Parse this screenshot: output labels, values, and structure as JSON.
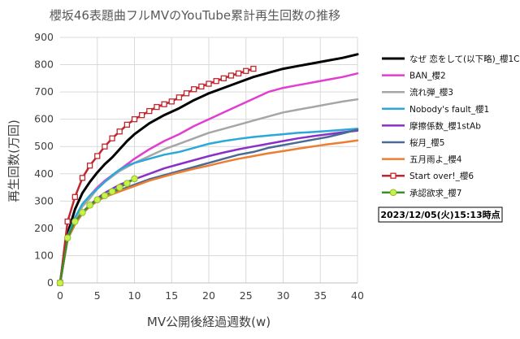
{
  "chart_data": {
    "type": "line",
    "title": "櫻坂46表題曲フルMVのYouTube累計再生回数の推移",
    "xlabel": "MV公開後経過週数(w)",
    "ylabel": "再生回数(万回)",
    "xlim": [
      0,
      40
    ],
    "ylim": [
      0,
      900
    ],
    "xticks": [
      "0",
      "5",
      "10",
      "15",
      "20",
      "25",
      "30",
      "35",
      "40"
    ],
    "yticks": [
      "0",
      "100",
      "200",
      "300",
      "400",
      "500",
      "600",
      "700",
      "800",
      "900"
    ],
    "grid": true,
    "legend_position": "right",
    "timestamp": "2023/12/05(火)15:13時点",
    "series": [
      {
        "name": "なぜ 恋をして(以下略)_櫻1C",
        "color": "#000000",
        "marker": "none",
        "x": [
          0,
          1,
          2,
          3,
          4,
          5,
          6,
          7,
          8,
          9,
          10,
          12,
          14,
          16,
          18,
          20,
          22,
          24,
          26,
          28,
          30,
          32,
          34,
          36,
          38,
          40
        ],
        "y": [
          0,
          180,
          270,
          330,
          370,
          405,
          435,
          460,
          490,
          520,
          545,
          585,
          615,
          640,
          670,
          695,
          715,
          735,
          755,
          770,
          785,
          795,
          805,
          815,
          825,
          838
        ]
      },
      {
        "name": "BAN_櫻2",
        "color": "#e33ccf",
        "marker": "none",
        "x": [
          0,
          1,
          2,
          3,
          4,
          5,
          6,
          7,
          8,
          9,
          10,
          12,
          14,
          16,
          18,
          20,
          22,
          24,
          26,
          28,
          30,
          32,
          34,
          36,
          38,
          40
        ],
        "y": [
          0,
          160,
          230,
          285,
          320,
          350,
          375,
          395,
          415,
          435,
          455,
          490,
          520,
          545,
          575,
          600,
          625,
          650,
          675,
          700,
          715,
          725,
          735,
          745,
          755,
          768
        ]
      },
      {
        "name": "流れ弾_櫻3",
        "color": "#a6a6a6",
        "marker": "none",
        "x": [
          0,
          1,
          2,
          3,
          4,
          5,
          6,
          7,
          8,
          9,
          10,
          12,
          14,
          16,
          18,
          20,
          22,
          24,
          26,
          28,
          30,
          32,
          34,
          36,
          38,
          40
        ],
        "y": [
          0,
          165,
          230,
          280,
          310,
          345,
          370,
          390,
          410,
          425,
          440,
          465,
          490,
          510,
          530,
          550,
          565,
          580,
          595,
          610,
          625,
          635,
          645,
          655,
          665,
          673
        ]
      },
      {
        "name": "Nobody's fault_櫻1",
        "color": "#2aa8d8",
        "marker": "none",
        "x": [
          0,
          1,
          2,
          3,
          4,
          5,
          6,
          7,
          8,
          9,
          10,
          12,
          14,
          16,
          18,
          20,
          22,
          24,
          26,
          28,
          30,
          32,
          34,
          36,
          38,
          40
        ],
        "y": [
          0,
          170,
          240,
          290,
          320,
          345,
          370,
          395,
          415,
          430,
          440,
          455,
          470,
          480,
          495,
          510,
          520,
          528,
          535,
          540,
          545,
          550,
          553,
          557,
          561,
          565
        ]
      },
      {
        "name": "摩擦係数_櫻1stAb",
        "color": "#8b2fc9",
        "marker": "none",
        "x": [
          0,
          1,
          2,
          3,
          4,
          5,
          6,
          7,
          8,
          9,
          10,
          12,
          14,
          16,
          18,
          20,
          22,
          24,
          26,
          28,
          30,
          32,
          34,
          36,
          38,
          40
        ],
        "y": [
          0,
          165,
          220,
          260,
          285,
          310,
          330,
          345,
          360,
          370,
          380,
          400,
          420,
          435,
          450,
          465,
          478,
          490,
          500,
          510,
          520,
          530,
          538,
          545,
          552,
          558
        ]
      },
      {
        "name": "桜月_櫻5",
        "color": "#4a6a93",
        "marker": "none",
        "x": [
          0,
          1,
          2,
          3,
          4,
          5,
          6,
          7,
          8,
          9,
          10,
          12,
          14,
          16,
          18,
          20,
          22,
          24,
          26,
          28,
          30,
          32,
          34,
          36,
          38,
          40
        ],
        "y": [
          0,
          160,
          215,
          255,
          280,
          300,
          315,
          330,
          340,
          350,
          360,
          380,
          395,
          410,
          425,
          440,
          455,
          470,
          480,
          495,
          505,
          515,
          525,
          535,
          548,
          562
        ]
      },
      {
        "name": "五月雨よ_櫻4",
        "color": "#ed7d31",
        "marker": "none",
        "x": [
          0,
          1,
          2,
          3,
          4,
          5,
          6,
          7,
          8,
          9,
          10,
          12,
          14,
          16,
          18,
          20,
          22,
          24,
          26,
          28,
          30,
          32,
          34,
          36,
          38,
          40
        ],
        "y": [
          0,
          160,
          215,
          255,
          280,
          300,
          315,
          325,
          335,
          345,
          355,
          375,
          390,
          405,
          418,
          430,
          443,
          455,
          465,
          475,
          483,
          492,
          500,
          508,
          515,
          522
        ]
      },
      {
        "name": "Start over!_櫻6",
        "color": "#c0272d",
        "marker": "square",
        "x": [
          0,
          1,
          2,
          3,
          4,
          5,
          6,
          7,
          8,
          9,
          10,
          11,
          12,
          13,
          14,
          15,
          16,
          17,
          18,
          19,
          20,
          21,
          22,
          23,
          24,
          25,
          26
        ],
        "y": [
          0,
          225,
          315,
          385,
          430,
          465,
          500,
          530,
          555,
          580,
          600,
          615,
          630,
          645,
          655,
          665,
          680,
          695,
          710,
          720,
          730,
          740,
          750,
          760,
          768,
          777,
          785
        ]
      },
      {
        "name": "承認欲求_櫻7",
        "color": "#3d8f2a",
        "marker": "circle",
        "x": [
          0,
          1,
          2,
          3,
          4,
          5,
          6,
          7,
          8,
          9,
          10
        ],
        "y": [
          0,
          165,
          225,
          258,
          285,
          305,
          320,
          335,
          350,
          365,
          382
        ]
      }
    ]
  }
}
